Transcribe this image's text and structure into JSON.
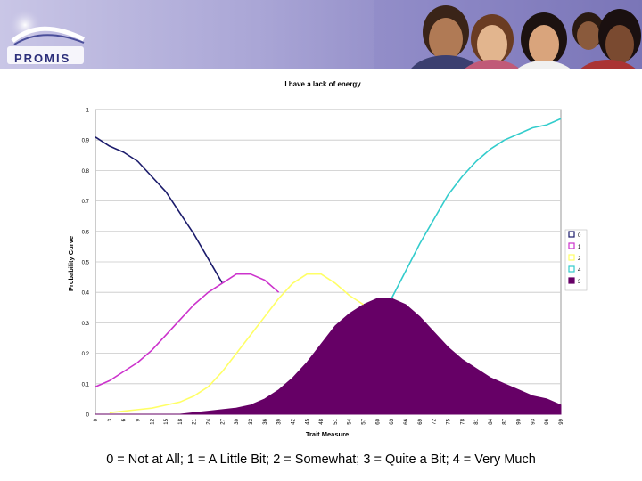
{
  "header": {
    "logo_text": "PROMIS",
    "logo_icon": "promis-swoosh-icon",
    "photo": "people-photo"
  },
  "caption": "0 = Not at All; 1 = A Little Bit; 2 = Somewhat; 3 = Quite a Bit; 4 = Very Much",
  "chart_data": {
    "type": "area",
    "title": "I have a lack of energy",
    "xlabel": "Trait Measure",
    "ylabel": "Probability Curve",
    "ylim": [
      0,
      1
    ],
    "y_ticks": [
      "0",
      "0.1",
      "0.2",
      "0.3",
      "0.4",
      "0.5",
      "0.6",
      "0.7",
      "0.8",
      "0.9",
      "1"
    ],
    "x_ticks": [
      "0",
      "3",
      "6",
      "9",
      "12",
      "15",
      "18",
      "21",
      "24",
      "27",
      "30",
      "33",
      "36",
      "39",
      "42",
      "45",
      "48",
      "51",
      "54",
      "57",
      "60",
      "63",
      "66",
      "69",
      "72",
      "75",
      "78",
      "81",
      "84",
      "87",
      "90",
      "93",
      "96",
      "99"
    ],
    "x": [
      0,
      3,
      6,
      9,
      12,
      15,
      18,
      21,
      24,
      27,
      30,
      33,
      36,
      39,
      42,
      45,
      48,
      51,
      54,
      57,
      60,
      63,
      66,
      69,
      72,
      75,
      78,
      81,
      84,
      87,
      90,
      93,
      96,
      99
    ],
    "grid": "horizontal",
    "legend_position": "right",
    "series": [
      {
        "name": "0",
        "color": "#1b1b6b",
        "style": "line",
        "values": [
          0.91,
          0.88,
          0.86,
          0.83,
          0.78,
          0.73,
          0.66,
          0.59,
          0.51,
          0.43,
          null,
          null,
          null,
          null,
          null,
          null,
          null,
          null,
          null,
          null,
          null,
          null,
          null,
          null,
          null,
          null,
          null,
          null,
          null,
          null,
          null,
          null,
          null,
          null
        ]
      },
      {
        "name": "1",
        "color": "#cc33cc",
        "style": "line",
        "values": [
          0.09,
          0.11,
          0.14,
          0.17,
          0.21,
          0.26,
          0.31,
          0.36,
          0.4,
          0.43,
          0.46,
          0.46,
          0.44,
          0.4,
          null,
          null,
          null,
          null,
          null,
          null,
          null,
          null,
          null,
          null,
          null,
          null,
          null,
          null,
          null,
          null,
          null,
          null,
          null,
          null
        ]
      },
      {
        "name": "2",
        "color": "#ffff66",
        "style": "line",
        "values": [
          null,
          0.005,
          0.01,
          0.015,
          0.02,
          0.03,
          0.04,
          0.06,
          0.09,
          0.14,
          0.2,
          0.26,
          0.32,
          0.38,
          0.43,
          0.46,
          0.46,
          0.43,
          0.39,
          0.36,
          null,
          null,
          null,
          null,
          null,
          null,
          null,
          null,
          null,
          null,
          null,
          null,
          null,
          null
        ]
      },
      {
        "name": "4",
        "color": "#33cccc",
        "style": "line",
        "values": [
          null,
          null,
          null,
          null,
          null,
          null,
          null,
          null,
          null,
          null,
          null,
          null,
          null,
          null,
          null,
          null,
          null,
          null,
          null,
          null,
          null,
          0.38,
          0.47,
          0.56,
          0.64,
          0.72,
          0.78,
          0.83,
          0.87,
          0.9,
          0.92,
          0.94,
          0.95,
          0.97
        ]
      },
      {
        "name": "3",
        "color": "#660066",
        "style": "area",
        "values": [
          0,
          0,
          0,
          0,
          0,
          0,
          0,
          0.005,
          0.01,
          0.015,
          0.02,
          0.03,
          0.05,
          0.08,
          0.12,
          0.17,
          0.23,
          0.29,
          0.33,
          0.36,
          0.38,
          0.38,
          0.36,
          0.32,
          0.27,
          0.22,
          0.18,
          0.15,
          0.12,
          0.1,
          0.08,
          0.06,
          0.05,
          0.03
        ]
      }
    ]
  }
}
